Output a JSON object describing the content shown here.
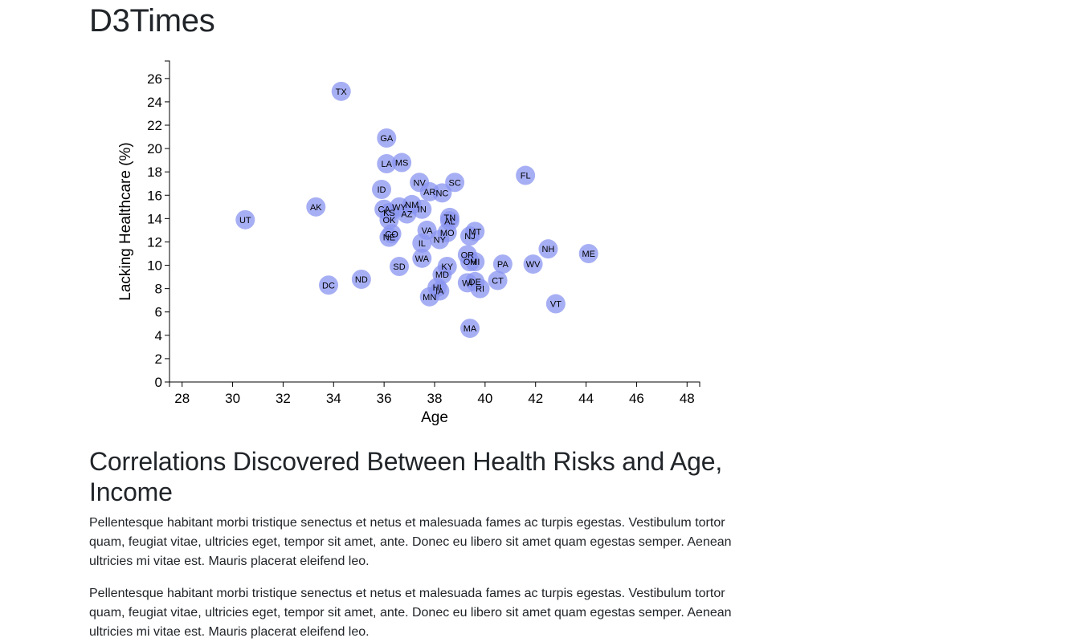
{
  "page": {
    "title": "D3Times",
    "heading": "Correlations Discovered Between Health Risks and Age, Income",
    "paragraphs": [
      "Pellentesque habitant morbi tristique senectus et netus et malesuada fames ac turpis egestas. Vestibulum tortor quam, feugiat vitae, ultricies eget, tempor sit amet, ante. Donec eu libero sit amet quam egestas semper. Aenean ultricies mi vitae est. Mauris placerat eleifend leo.",
      "Pellentesque habitant morbi tristique senectus et netus et malesuada fames ac turpis egestas. Vestibulum tortor quam, feugiat vitae, ultricies eget, tempor sit amet, ante. Donec eu libero sit amet quam egestas semper. Aenean ultricies mi vitae est. Mauris placerat eleifend leo."
    ]
  },
  "chart_data": {
    "type": "scatter",
    "xlabel": "Age",
    "ylabel": "Lacking Healthcare (%)",
    "xlim": [
      27.5,
      48.5
    ],
    "ylim": [
      0,
      27.5
    ],
    "xticks": [
      28,
      30,
      32,
      34,
      36,
      38,
      40,
      42,
      44,
      46,
      48
    ],
    "yticks": [
      0,
      2,
      4,
      6,
      8,
      10,
      12,
      14,
      16,
      18,
      20,
      22,
      24,
      26
    ],
    "grid": false,
    "marker_color": "#8a94f0",
    "points": [
      {
        "label": "TX",
        "x": 34.3,
        "y": 24.9
      },
      {
        "label": "GA",
        "x": 36.1,
        "y": 20.9
      },
      {
        "label": "LA",
        "x": 36.1,
        "y": 18.7
      },
      {
        "label": "MS",
        "x": 36.7,
        "y": 18.8
      },
      {
        "label": "FL",
        "x": 41.6,
        "y": 17.7
      },
      {
        "label": "NV",
        "x": 37.4,
        "y": 17.1
      },
      {
        "label": "SC",
        "x": 38.8,
        "y": 17.1
      },
      {
        "label": "ID",
        "x": 35.9,
        "y": 16.5
      },
      {
        "label": "AR",
        "x": 37.8,
        "y": 16.3
      },
      {
        "label": "NC",
        "x": 38.3,
        "y": 16.2
      },
      {
        "label": "AK",
        "x": 33.3,
        "y": 15.0
      },
      {
        "label": "NM",
        "x": 37.1,
        "y": 15.2
      },
      {
        "label": "WY",
        "x": 36.6,
        "y": 15.0
      },
      {
        "label": "CA",
        "x": 36.0,
        "y": 14.8
      },
      {
        "label": "IN",
        "x": 37.5,
        "y": 14.8
      },
      {
        "label": "KS",
        "x": 36.2,
        "y": 14.5
      },
      {
        "label": "AZ",
        "x": 36.9,
        "y": 14.4
      },
      {
        "label": "UT",
        "x": 30.5,
        "y": 13.9
      },
      {
        "label": "OK",
        "x": 36.2,
        "y": 13.9
      },
      {
        "label": "TN",
        "x": 38.6,
        "y": 14.1
      },
      {
        "label": "AL",
        "x": 38.6,
        "y": 13.8
      },
      {
        "label": "VA",
        "x": 37.7,
        "y": 13.0
      },
      {
        "label": "MT",
        "x": 39.6,
        "y": 12.9
      },
      {
        "label": "MO",
        "x": 38.5,
        "y": 12.8
      },
      {
        "label": "CO",
        "x": 36.3,
        "y": 12.7
      },
      {
        "label": "NJ",
        "x": 39.4,
        "y": 12.5
      },
      {
        "label": "NE",
        "x": 36.2,
        "y": 12.4
      },
      {
        "label": "NY",
        "x": 38.2,
        "y": 12.2
      },
      {
        "label": "IL",
        "x": 37.5,
        "y": 11.9
      },
      {
        "label": "NH",
        "x": 42.5,
        "y": 11.4
      },
      {
        "label": "ME",
        "x": 44.1,
        "y": 11.0
      },
      {
        "label": "OR",
        "x": 39.3,
        "y": 10.9
      },
      {
        "label": "WA",
        "x": 37.5,
        "y": 10.6
      },
      {
        "label": "OH",
        "x": 39.4,
        "y": 10.3
      },
      {
        "label": "MI",
        "x": 39.6,
        "y": 10.3
      },
      {
        "label": "PA",
        "x": 40.7,
        "y": 10.1
      },
      {
        "label": "WV",
        "x": 41.9,
        "y": 10.1
      },
      {
        "label": "KY",
        "x": 38.5,
        "y": 9.9
      },
      {
        "label": "SD",
        "x": 36.6,
        "y": 9.9
      },
      {
        "label": "MD",
        "x": 38.3,
        "y": 9.2
      },
      {
        "label": "ND",
        "x": 35.1,
        "y": 8.8
      },
      {
        "label": "CT",
        "x": 40.5,
        "y": 8.7
      },
      {
        "label": "WI",
        "x": 39.3,
        "y": 8.5
      },
      {
        "label": "DE",
        "x": 39.6,
        "y": 8.6
      },
      {
        "label": "DC",
        "x": 33.8,
        "y": 8.3
      },
      {
        "label": "HI",
        "x": 38.1,
        "y": 8.1
      },
      {
        "label": "RI",
        "x": 39.8,
        "y": 8.0
      },
      {
        "label": "IA",
        "x": 38.2,
        "y": 7.8
      },
      {
        "label": "MN",
        "x": 37.8,
        "y": 7.3
      },
      {
        "label": "VT",
        "x": 42.8,
        "y": 6.7
      },
      {
        "label": "MA",
        "x": 39.4,
        "y": 4.6
      }
    ]
  }
}
